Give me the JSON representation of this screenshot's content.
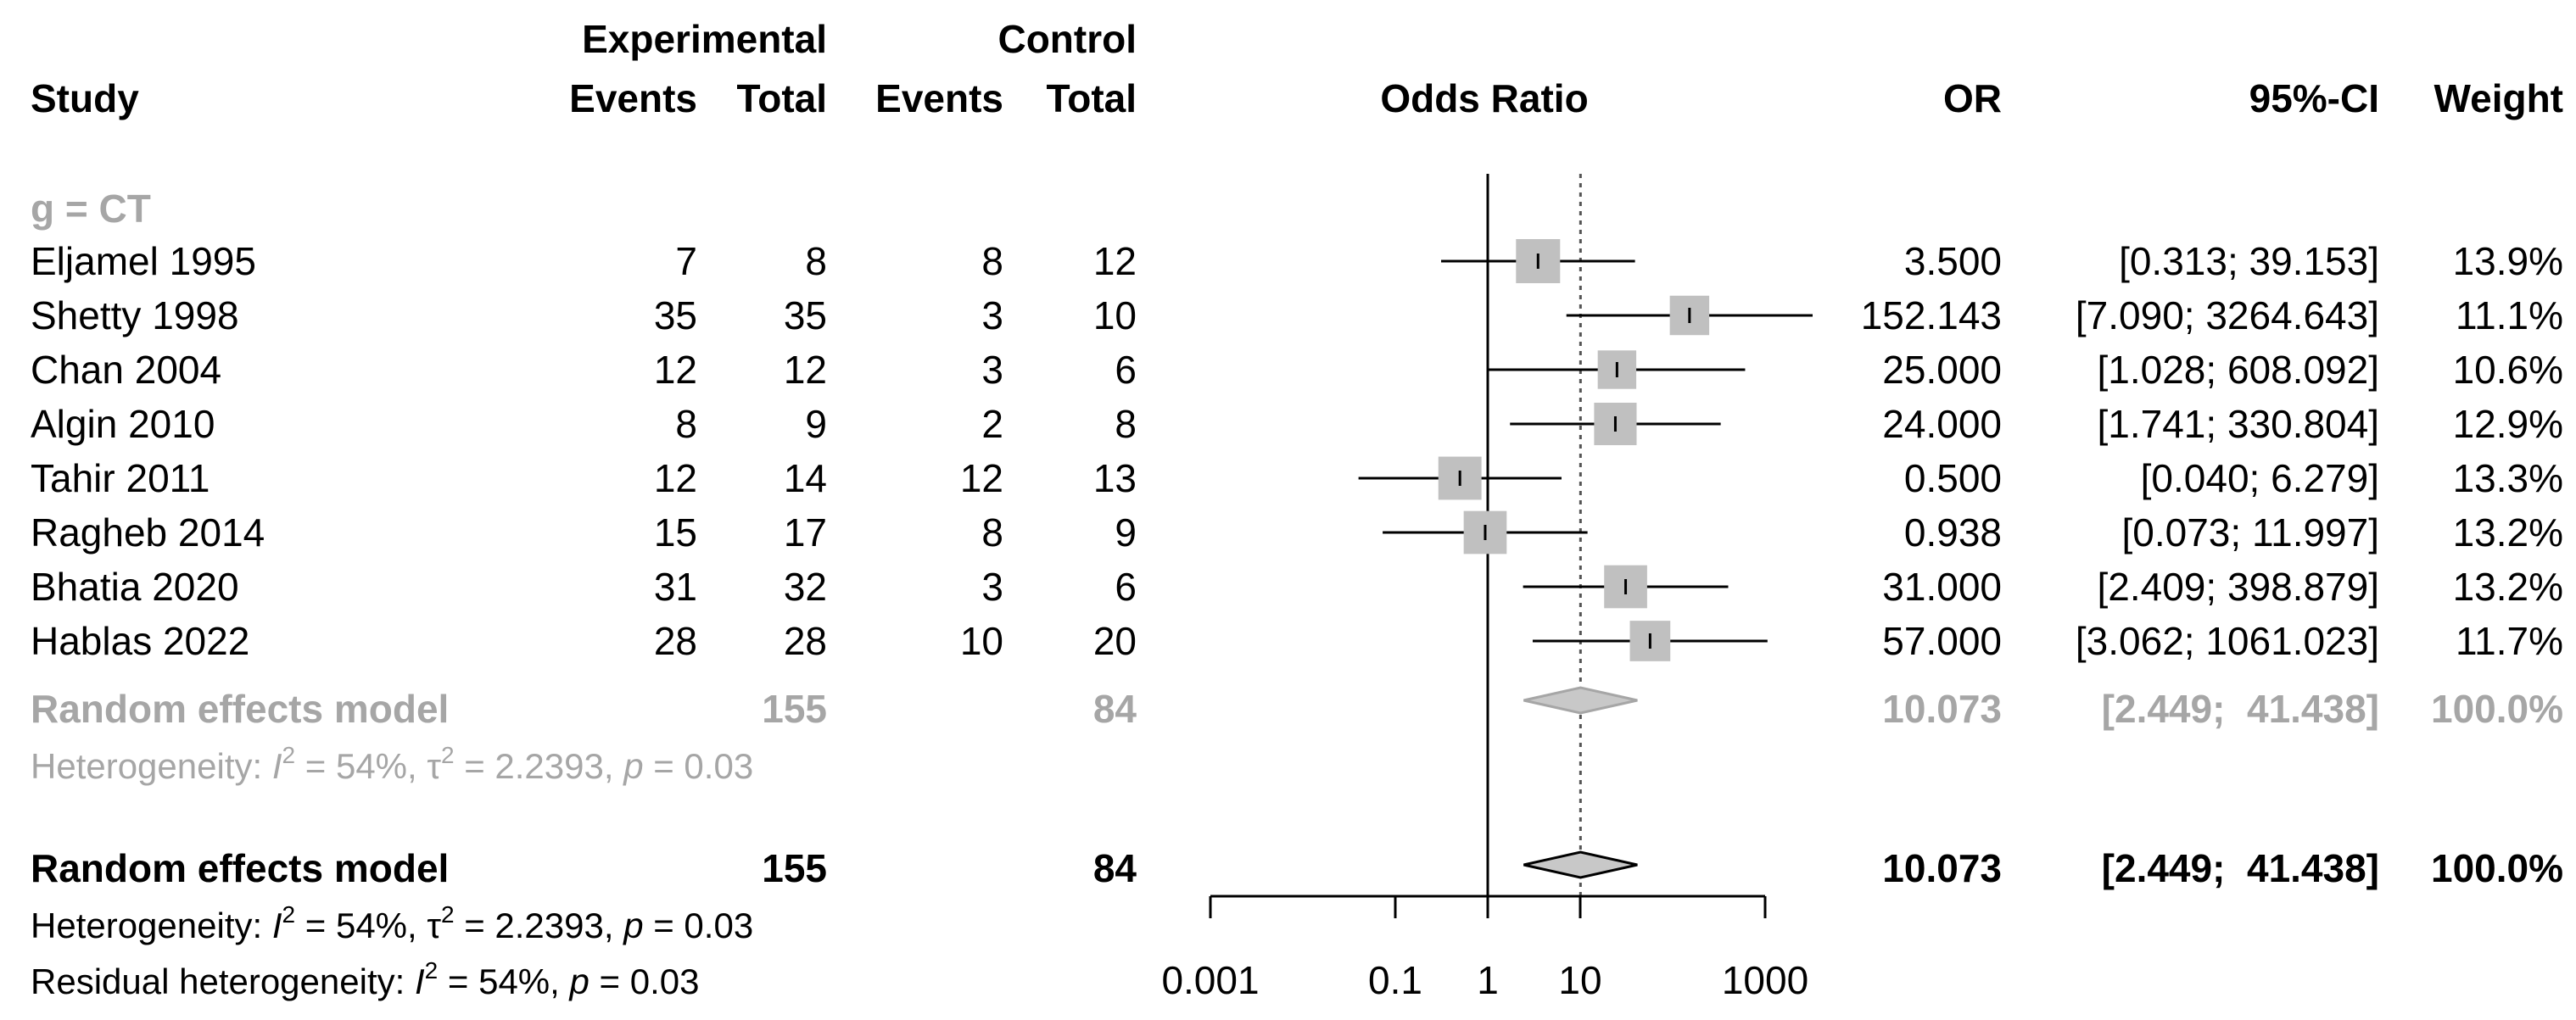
{
  "chart_data": {
    "type": "forest",
    "title": "",
    "xlabel": "Odds Ratio",
    "x_scale": "log10",
    "xlim": [
      0.001,
      1000
    ],
    "xticks": [
      0.001,
      0.1,
      1,
      10,
      1000
    ],
    "xtick_labels": [
      "0.001",
      "0.1",
      "1",
      "10",
      "1000"
    ],
    "reference_line": 1,
    "pooled_reference_line": 10.073,
    "headers": {
      "study": "Study",
      "experimental": "Experimental",
      "control": "Control",
      "events": "Events",
      "total": "Total",
      "axis_title": "Odds Ratio",
      "or": "OR",
      "ci": "95%-CI",
      "weight": "Weight"
    },
    "subgroup": {
      "label": "g = CT",
      "pooled": {
        "label": "Random effects model",
        "exp_total": "155",
        "ctrl_total": "84",
        "or": 10.073,
        "or_text": "10.073",
        "ci_lower": 2.449,
        "ci_upper": 41.438,
        "ci_text": "[2.449;  41.438]",
        "weight": "100.0%"
      },
      "heterogeneity": {
        "prefix": "Heterogeneity: ",
        "i2_sym": "I",
        "i2_val": " = 54%, ",
        "tau_sym": "τ",
        "tau_val": " = 2.2393, ",
        "p_sym": "p",
        "p_val": " = 0.03"
      }
    },
    "studies": [
      {
        "name": "Eljamel 1995",
        "exp_events": "7",
        "exp_total": "8",
        "ctrl_events": "8",
        "ctrl_total": "12",
        "or": 3.5,
        "or_text": "3.500",
        "ci_lower": 0.313,
        "ci_upper": 39.153,
        "ci_text": "[0.313;  39.153]",
        "weight": 13.9,
        "weight_text": "13.9%"
      },
      {
        "name": "Shetty 1998",
        "exp_events": "35",
        "exp_total": "35",
        "ctrl_events": "3",
        "ctrl_total": "10",
        "or": 152.143,
        "or_text": "152.143",
        "ci_lower": 7.09,
        "ci_upper": 3264.643,
        "ci_text": "[7.090; 3264.643]",
        "weight": 11.1,
        "weight_text": "11.1%"
      },
      {
        "name": "Chan 2004",
        "exp_events": "12",
        "exp_total": "12",
        "ctrl_events": "3",
        "ctrl_total": "6",
        "or": 25.0,
        "or_text": "25.000",
        "ci_lower": 1.028,
        "ci_upper": 608.092,
        "ci_text": "[1.028; 608.092]",
        "weight": 10.6,
        "weight_text": "10.6%"
      },
      {
        "name": "Algin 2010",
        "exp_events": "8",
        "exp_total": "9",
        "ctrl_events": "2",
        "ctrl_total": "8",
        "or": 24.0,
        "or_text": "24.000",
        "ci_lower": 1.741,
        "ci_upper": 330.804,
        "ci_text": "[1.741; 330.804]",
        "weight": 12.9,
        "weight_text": "12.9%"
      },
      {
        "name": "Tahir 2011",
        "exp_events": "12",
        "exp_total": "14",
        "ctrl_events": "12",
        "ctrl_total": "13",
        "or": 0.5,
        "or_text": "0.500",
        "ci_lower": 0.04,
        "ci_upper": 6.279,
        "ci_text": "[0.040;   6.279]",
        "weight": 13.3,
        "weight_text": "13.3%"
      },
      {
        "name": "Ragheb 2014",
        "exp_events": "15",
        "exp_total": "17",
        "ctrl_events": "8",
        "ctrl_total": "9",
        "or": 0.938,
        "or_text": "0.938",
        "ci_lower": 0.073,
        "ci_upper": 11.997,
        "ci_text": "[0.073;  11.997]",
        "weight": 13.2,
        "weight_text": "13.2%"
      },
      {
        "name": "Bhatia 2020",
        "exp_events": "31",
        "exp_total": "32",
        "ctrl_events": "3",
        "ctrl_total": "6",
        "or": 31.0,
        "or_text": "31.000",
        "ci_lower": 2.409,
        "ci_upper": 398.879,
        "ci_text": "[2.409; 398.879]",
        "weight": 13.2,
        "weight_text": "13.2%"
      },
      {
        "name": "Hablas 2022",
        "exp_events": "28",
        "exp_total": "28",
        "ctrl_events": "10",
        "ctrl_total": "20",
        "or": 57.0,
        "or_text": "57.000",
        "ci_lower": 3.062,
        "ci_upper": 1061.023,
        "ci_text": "[3.062; 1061.023]",
        "weight": 11.7,
        "weight_text": "11.7%"
      }
    ],
    "overall": {
      "label": "Random effects model",
      "exp_total": "155",
      "ctrl_total": "84",
      "or": 10.073,
      "or_text": "10.073",
      "ci_lower": 2.449,
      "ci_upper": 41.438,
      "ci_text": "[2.449;  41.438]",
      "weight": "100.0%",
      "heterogeneity": {
        "prefix": "Heterogeneity: ",
        "i2_sym": "I",
        "i2_val": " = 54%, ",
        "tau_sym": "τ",
        "tau_val": " = 2.2393, ",
        "p_sym": "p",
        "p_val": " = 0.03"
      },
      "residual": {
        "prefix": "Residual heterogeneity: ",
        "i2_sym": "I",
        "i2_val": " = 54%, ",
        "p_sym": "p",
        "p_val": " = 0.03"
      },
      "sup2": "2"
    },
    "colors": {
      "black": "#000000",
      "subgroup_grey": "#a6a6a6",
      "square": "#c0c0c0",
      "diamond": "#c8c8c8"
    }
  }
}
